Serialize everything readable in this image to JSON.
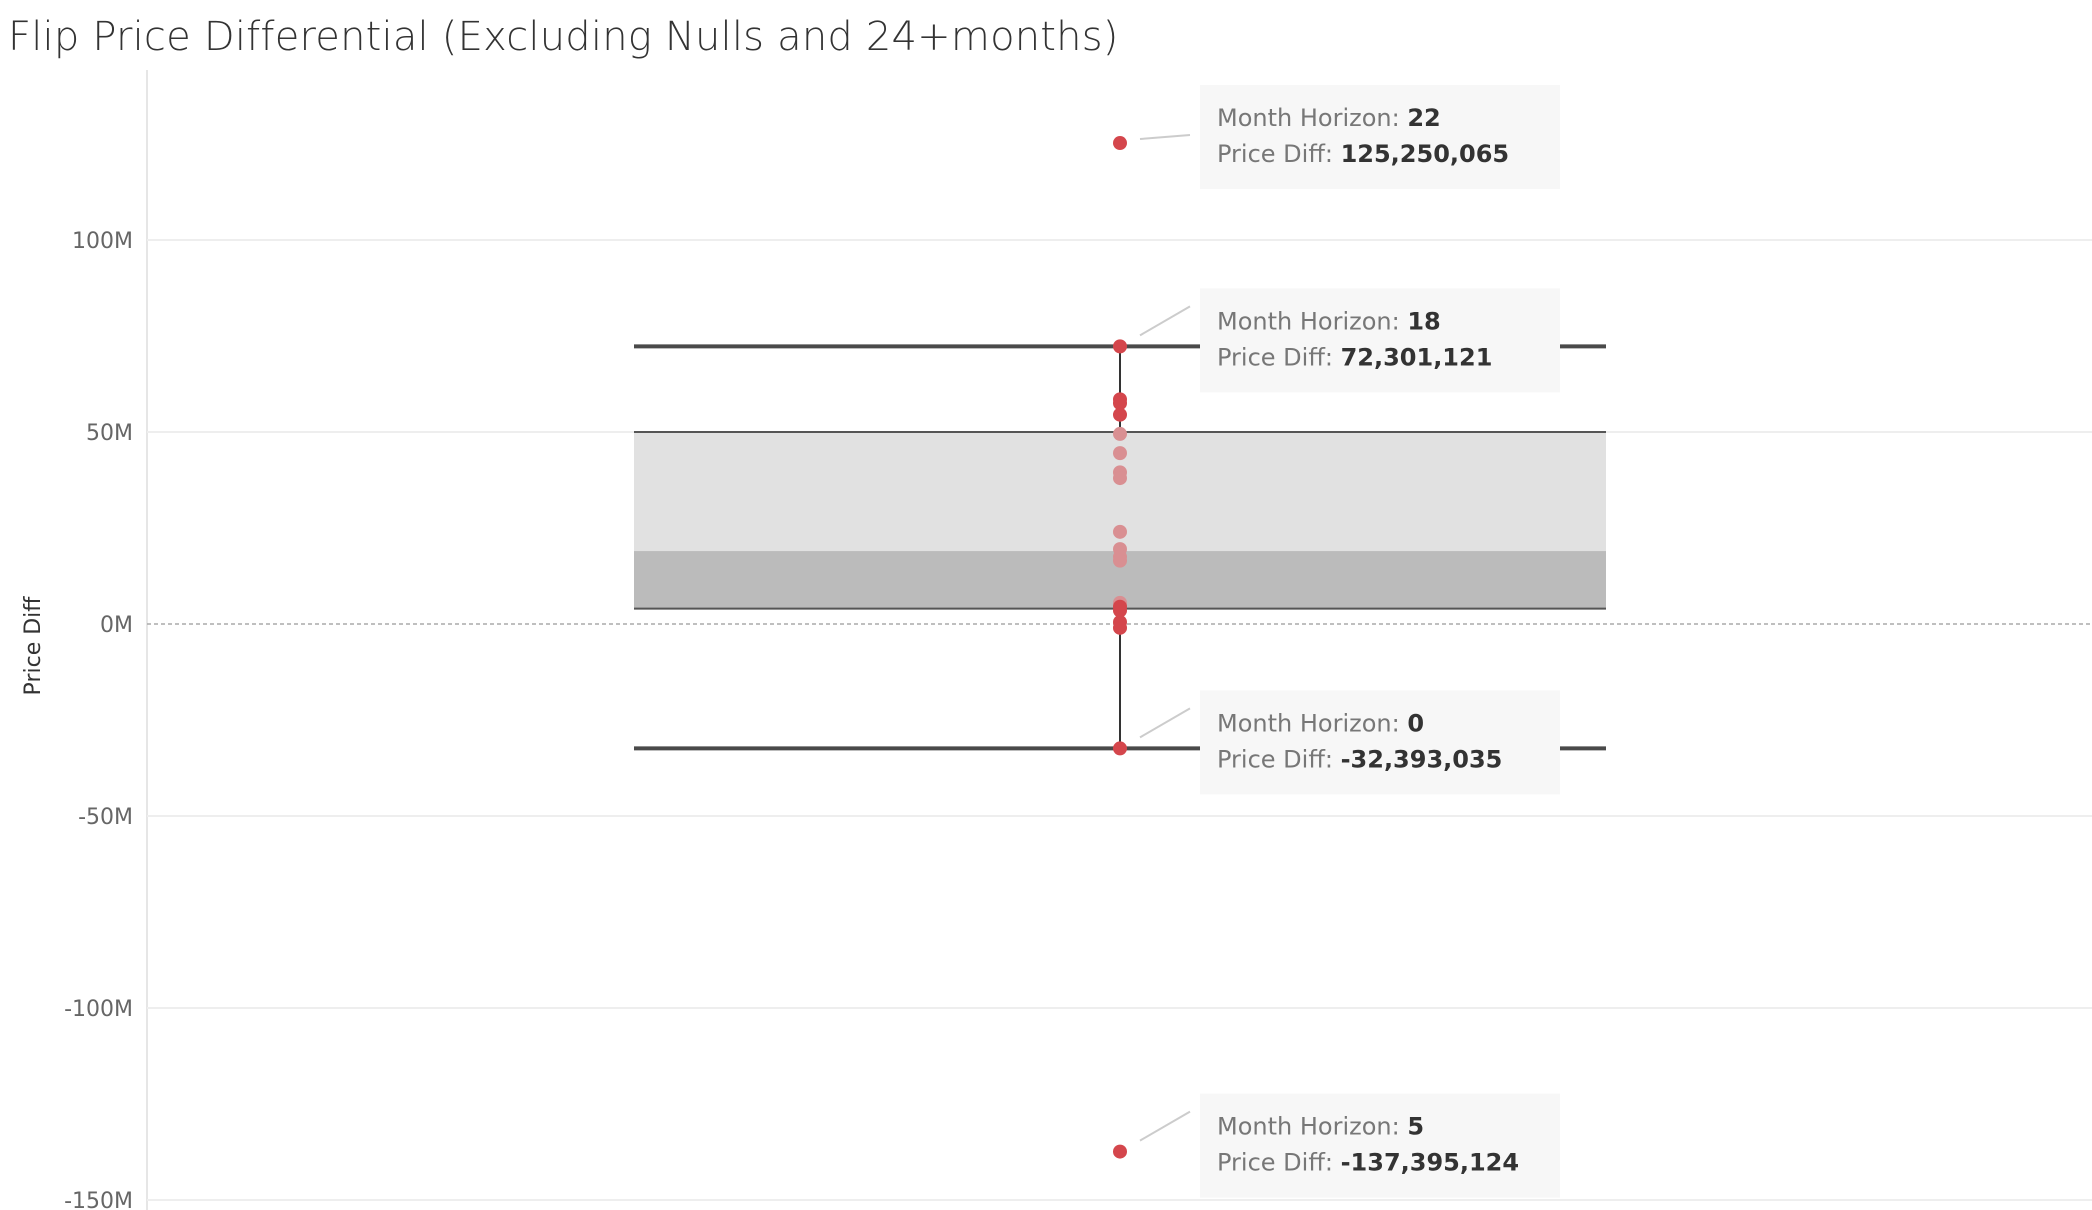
{
  "title": "Flip Price Differential (Excluding Nulls and 24+months)",
  "colors": {
    "point": "#D4464C",
    "point_faded": "#D98F92",
    "box_upper": "#E1E1E1",
    "box_lower": "#BBBBBB",
    "whisker": "#4A4A4A",
    "grid": "#EEEEEE",
    "zero_line": "#AAAAAA",
    "tooltip_bg": "#F7F7F7"
  },
  "chart_data": {
    "type": "box",
    "ylabel": "Price Diff",
    "ylim": [
      -150000000,
      150000000
    ],
    "y_ticks": [
      {
        "value": 100000000,
        "label": "100M"
      },
      {
        "value": 50000000,
        "label": "50M"
      },
      {
        "value": 0,
        "label": "0M"
      },
      {
        "value": -50000000,
        "label": "-50M"
      },
      {
        "value": -100000000,
        "label": "-100M"
      },
      {
        "value": -150000000,
        "label": "-150M"
      }
    ],
    "grid": true,
    "box": {
      "upper_whisker": 72301121,
      "q3": 50000000,
      "median": 19000000,
      "q1": 4000000,
      "lower_whisker": -32393035
    },
    "points": [
      {
        "y": 125250065,
        "faded": false
      },
      {
        "y": 72301121,
        "faded": false
      },
      {
        "y": 58500000,
        "faded": false
      },
      {
        "y": 57500000,
        "faded": false
      },
      {
        "y": 54500000,
        "faded": false
      },
      {
        "y": 49500000,
        "faded": true
      },
      {
        "y": 44500000,
        "faded": true
      },
      {
        "y": 39500000,
        "faded": true
      },
      {
        "y": 38000000,
        "faded": true
      },
      {
        "y": 24000000,
        "faded": true
      },
      {
        "y": 19500000,
        "faded": true
      },
      {
        "y": 17500000,
        "faded": true
      },
      {
        "y": 16500000,
        "faded": true
      },
      {
        "y": 5500000,
        "faded": true
      },
      {
        "y": 4500000,
        "faded": false
      },
      {
        "y": 3500000,
        "faded": false
      },
      {
        "y": 500000,
        "faded": false
      },
      {
        "y": -1000000,
        "faded": false
      },
      {
        "y": -32393035,
        "faded": false
      },
      {
        "y": -137395124,
        "faded": false
      }
    ],
    "annotations": [
      {
        "y": 125250065,
        "month_key": "Month Horizon:",
        "month_value": "22",
        "price_key": "Price Diff:",
        "price_value": "125,250,065"
      },
      {
        "y": 72301121,
        "month_key": "Month Horizon:",
        "month_value": "18",
        "price_key": "Price Diff:",
        "price_value": "72,301,121"
      },
      {
        "y": -32393035,
        "month_key": "Month Horizon:",
        "month_value": "0",
        "price_key": "Price Diff:",
        "price_value": "-32,393,035"
      },
      {
        "y": -137395124,
        "month_key": "Month Horizon:",
        "month_value": "5",
        "price_key": "Price Diff:",
        "price_value": "-137,395,124"
      }
    ]
  }
}
